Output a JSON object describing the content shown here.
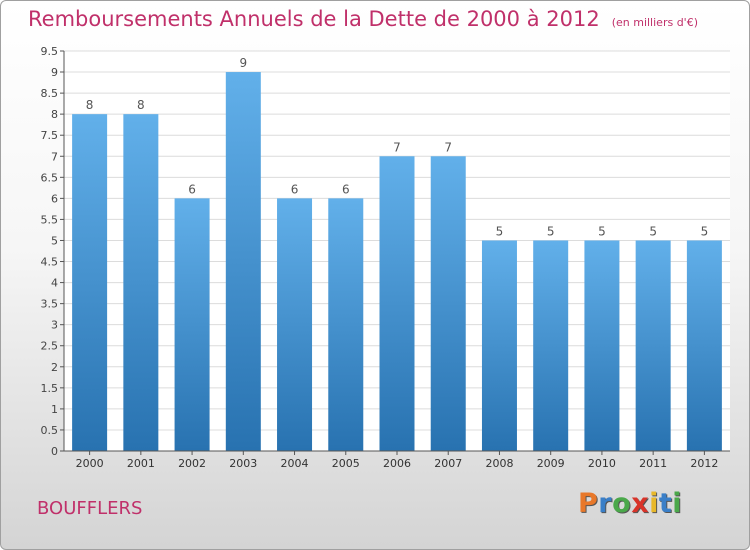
{
  "header": {
    "title": "Remboursements Annuels de la Dette de 2000 à 2012",
    "unit": "(en milliers d'€)"
  },
  "footer": {
    "commune": "BOUFFLERS",
    "logo_letters": [
      "P",
      "r",
      "o",
      "x",
      "i",
      "t",
      "i"
    ],
    "logo_colors": [
      "#e8782a",
      "#3a7fc8",
      "#4aa84a",
      "#d8342a",
      "#e8b82a",
      "#3a7fc8",
      "#4aa84a"
    ]
  },
  "colors": {
    "accent": "#c0306a",
    "bar_top": "#62b0ea",
    "bar_bottom": "#2872b0"
  },
  "chart_data": {
    "type": "bar",
    "categories": [
      "2000",
      "2001",
      "2002",
      "2003",
      "2004",
      "2005",
      "2006",
      "2007",
      "2008",
      "2009",
      "2010",
      "2011",
      "2012"
    ],
    "values": [
      8,
      8,
      6,
      9,
      6,
      6,
      7,
      7,
      5,
      5,
      5,
      5,
      5
    ],
    "data_labels": [
      "8",
      "8",
      "6",
      "9",
      "6",
      "6",
      "7",
      "7",
      "5",
      "5",
      "5",
      "5",
      "5"
    ],
    "title": "Remboursements Annuels de la Dette de 2000 à 2012",
    "xlabel": "",
    "ylabel": "",
    "ylim": [
      0,
      9.5
    ],
    "yticks": [
      0,
      0.5,
      1,
      1.5,
      2,
      2.5,
      3,
      3.5,
      4,
      4.5,
      5,
      5.5,
      6,
      6.5,
      7,
      7.5,
      8,
      8.5,
      9,
      9.5
    ],
    "ytick_labels": [
      "0",
      "0.5",
      "1",
      "1.5",
      "2",
      "2.5",
      "3",
      "3.5",
      "4",
      "4.5",
      "5",
      "5.5",
      "6",
      "6.5",
      "7",
      "7.5",
      "8",
      "8.5",
      "9",
      "9.5"
    ],
    "grid": true,
    "legend": "none"
  }
}
